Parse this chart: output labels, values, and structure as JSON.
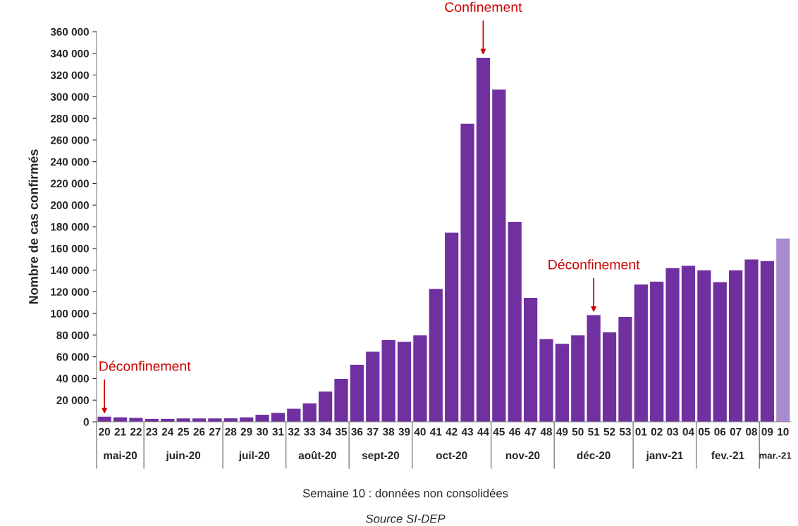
{
  "chart_data": {
    "type": "bar",
    "ylabel": "Nombre de cas confirmés",
    "categories": [
      "20",
      "21",
      "22",
      "23",
      "24",
      "25",
      "26",
      "27",
      "28",
      "29",
      "30",
      "31",
      "32",
      "33",
      "34",
      "35",
      "36",
      "37",
      "38",
      "39",
      "40",
      "41",
      "42",
      "43",
      "44",
      "45",
      "46",
      "47",
      "48",
      "49",
      "50",
      "51",
      "52",
      "53",
      "01",
      "02",
      "03",
      "04",
      "05",
      "06",
      "07",
      "08",
      "09",
      "10"
    ],
    "values": [
      4700,
      4100,
      3600,
      2700,
      2700,
      3100,
      3100,
      3100,
      3200,
      4100,
      6500,
      8200,
      12000,
      17000,
      28000,
      39700,
      52700,
      64700,
      75300,
      73800,
      79700,
      122600,
      174500,
      275000,
      336000,
      306600,
      184600,
      114400,
      76400,
      72000,
      79700,
      98400,
      82500,
      96800,
      126700,
      129300,
      141800,
      144000,
      139700,
      128800,
      139700,
      149800,
      148300,
      169100
    ],
    "colors": [
      "#7030a0",
      "#7030a0",
      "#7030a0",
      "#7030a0",
      "#7030a0",
      "#7030a0",
      "#7030a0",
      "#7030a0",
      "#7030a0",
      "#7030a0",
      "#7030a0",
      "#7030a0",
      "#7030a0",
      "#7030a0",
      "#7030a0",
      "#7030a0",
      "#7030a0",
      "#7030a0",
      "#7030a0",
      "#7030a0",
      "#7030a0",
      "#7030a0",
      "#7030a0",
      "#7030a0",
      "#7030a0",
      "#7030a0",
      "#7030a0",
      "#7030a0",
      "#7030a0",
      "#7030a0",
      "#7030a0",
      "#7030a0",
      "#7030a0",
      "#7030a0",
      "#7030a0",
      "#7030a0",
      "#7030a0",
      "#7030a0",
      "#7030a0",
      "#7030a0",
      "#7030a0",
      "#7030a0",
      "#7030a0",
      "#a98bd0"
    ],
    "ylim": [
      0,
      360000
    ],
    "yticks": [
      0,
      {
        "value": 20000,
        "label": "20 000"
      },
      {
        "value": 40000,
        "label": "40 000"
      },
      {
        "value": 60000,
        "label": "60 000"
      },
      {
        "value": 80000,
        "label": "80 000"
      },
      {
        "value": 100000,
        "label": "100 000"
      },
      {
        "value": 120000,
        "label": "120 000"
      },
      {
        "value": 140000,
        "label": "140 000"
      },
      {
        "value": 160000,
        "label": "160 000"
      },
      {
        "value": 180000,
        "label": "180 000"
      },
      {
        "value": 200000,
        "label": "200 000"
      },
      {
        "value": 220000,
        "label": "220 000"
      },
      {
        "value": 240000,
        "label": "240 000"
      },
      {
        "value": 260000,
        "label": "260 000"
      },
      {
        "value": 280000,
        "label": "280 000"
      },
      {
        "value": 300000,
        "label": "300 000"
      },
      {
        "value": 320000,
        "label": "320 000"
      },
      {
        "value": 340000,
        "label": "340 000"
      },
      {
        "value": 360000,
        "label": "360 000"
      }
    ],
    "grid": false,
    "annotations": [
      {
        "text": "Déconfinement",
        "x": "20",
        "y": 4700
      },
      {
        "text": "Confinement",
        "x": "44",
        "y": 336000
      },
      {
        "text": "Déconfinement",
        "x": "51",
        "y": 98400
      },
      "mai-20",
      "juin-20",
      "juil-20",
      "août-20",
      "sept-20",
      "oct-20",
      "nov-20",
      "déc-20",
      "janv-21",
      "fev.-21",
      "mar.-21",
      "Semaine 10 : données non consolidées",
      "Source SI-DEP"
    ]
  }
}
